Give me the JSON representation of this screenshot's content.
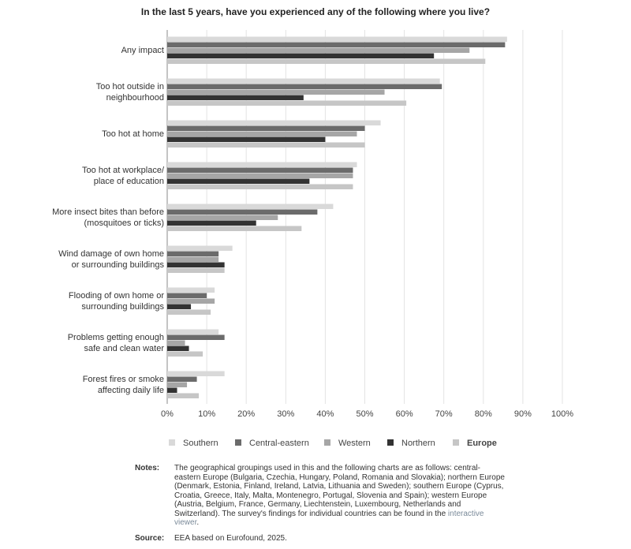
{
  "chart_data": {
    "type": "hbar",
    "title": "In the last 5 years, have you experienced any of the following where you live?",
    "categories": [
      "Any impact",
      "Too hot outside in\nneighbourhood",
      "Too hot at home",
      "Too hot at workplace/\nplace of education",
      "More insect bites than before\n(mosquitoes or ticks)",
      "Wind damage of own home\nor surrounding buildings",
      "Flooding of own home or\nsurrounding buildings",
      "Problems getting enough\nsafe and clean water",
      "Forest fires or smoke\naffecting daily life"
    ],
    "series": [
      {
        "name": "Southern",
        "color": "#d9d9d9",
        "values": [
          86,
          69,
          54,
          48,
          42,
          16.5,
          12,
          13,
          14.5
        ]
      },
      {
        "name": "Central-eastern",
        "color": "#6b6b6b",
        "values": [
          85.5,
          69.5,
          50,
          47,
          38,
          13,
          10,
          14.5,
          7.5
        ]
      },
      {
        "name": "Western",
        "color": "#a6a6a6",
        "values": [
          76.5,
          55,
          48,
          47,
          28,
          13,
          12,
          4.5,
          5
        ]
      },
      {
        "name": "Northern",
        "color": "#333333",
        "values": [
          67.5,
          34.5,
          40,
          36,
          22.5,
          14.5,
          6,
          5.5,
          2.5
        ]
      },
      {
        "name": "Europe",
        "color": "#c6c6c6",
        "values": [
          80.5,
          60.5,
          50,
          47,
          34,
          14.5,
          11,
          9,
          8
        ]
      }
    ],
    "xlim": [
      0,
      100
    ],
    "xticks": [
      {
        "value": 0,
        "label": "0%"
      },
      {
        "value": 10,
        "label": "10%"
      },
      {
        "value": 20,
        "label": "20%"
      },
      {
        "value": 30,
        "label": "30%"
      },
      {
        "value": 40,
        "label": "40%"
      },
      {
        "value": 50,
        "label": "50%"
      },
      {
        "value": 60,
        "label": "60%"
      },
      {
        "value": 70,
        "label": "70%"
      },
      {
        "value": 80,
        "label": "80%"
      },
      {
        "value": 90,
        "label": "90%"
      },
      {
        "value": 100,
        "label": "100%"
      }
    ],
    "grid": true,
    "legend_bold": "Europe"
  },
  "notes": {
    "label": "Notes:",
    "text": "The geographical groupings used in this and the following charts are as follows: central-eastern Europe (Bulgaria, Czechia, Hungary, Poland, Romania and Slovakia); northern Europe (Denmark, Estonia, Finland, Ireland, Latvia, Lithuania and Sweden); southern Europe (Cyprus, Croatia, Greece, Italy, Malta, Montenegro, Portugal, Slovenia and Spain); western Europe (Austria, Belgium, France, Germany, Liechtenstein, Luxembourg, Netherlands and Switzerland). The survey's findings for individual countries can be found in the",
    "link": "interactive viewer",
    "end": "."
  },
  "source": {
    "label": "Source:",
    "text": "EEA based on Eurofound, 2025."
  }
}
